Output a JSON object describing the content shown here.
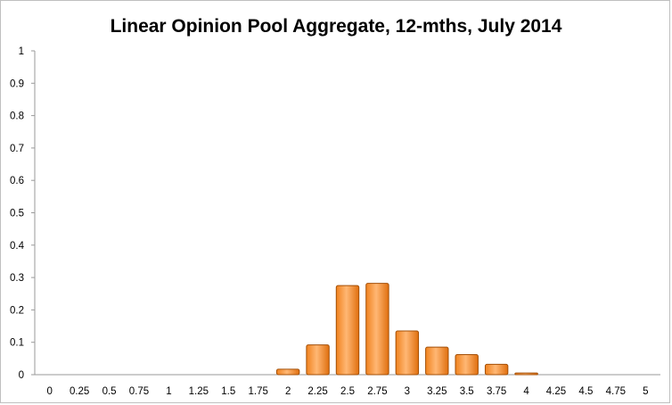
{
  "chart_data": {
    "type": "bar",
    "title": "Linear Opinion Pool Aggregate, 12-mths, July 2014",
    "xlabel": "",
    "ylabel": "",
    "categories": [
      "0",
      "0.25",
      "0.5",
      "0.75",
      "1",
      "1.25",
      "1.5",
      "1.75",
      "2",
      "2.25",
      "2.5",
      "2.75",
      "3",
      "3.25",
      "3.5",
      "3.75",
      "4",
      "4.25",
      "4.5",
      "4.75",
      "5"
    ],
    "values": [
      0,
      0,
      0,
      0,
      0,
      0,
      0,
      0,
      0.017,
      0.092,
      0.275,
      0.282,
      0.135,
      0.085,
      0.062,
      0.032,
      0.005,
      0,
      0,
      0,
      0
    ],
    "ylim": [
      0,
      1
    ],
    "yticks": [
      "0",
      "0.1",
      "0.2",
      "0.3",
      "0.4",
      "0.5",
      "0.6",
      "0.7",
      "0.8",
      "0.9",
      "1"
    ],
    "grid": false,
    "legend": "none",
    "colors": {
      "bar_fill": "#f0821e",
      "bar_highlight": "#ffb774",
      "bar_stroke": "#a34f07",
      "axis": "#9a9a9a"
    }
  }
}
